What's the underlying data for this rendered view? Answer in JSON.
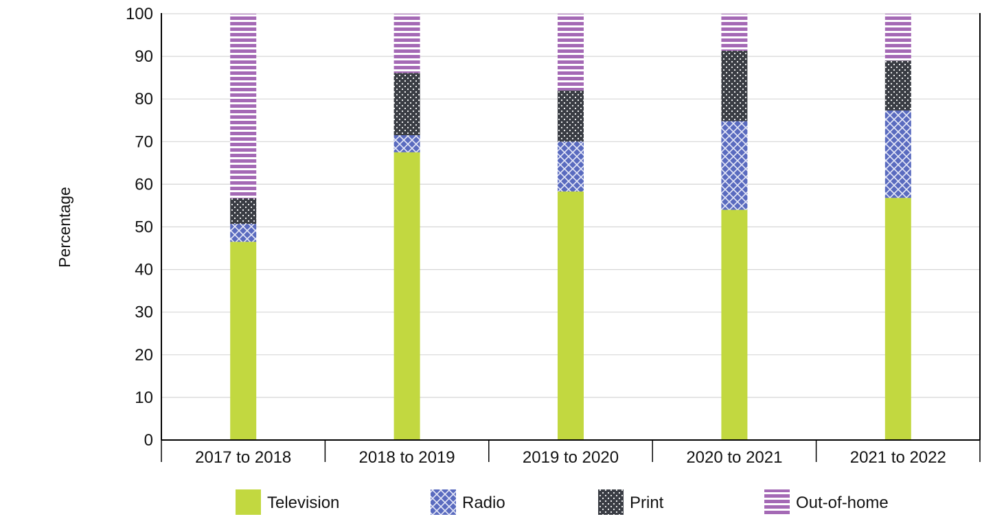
{
  "chart_data": {
    "type": "bar",
    "stacked": true,
    "title": "",
    "xlabel": "",
    "ylabel": "Percentage",
    "ylim": [
      0,
      100
    ],
    "yticks": [
      0,
      10,
      20,
      30,
      40,
      50,
      60,
      70,
      80,
      90,
      100
    ],
    "grid": true,
    "legend_position": "bottom",
    "categories": [
      "2017 to 2018",
      "2018 to 2019",
      "2019 to 2020",
      "2020 to 2021",
      "2021 to 2022"
    ],
    "series": [
      {
        "name": "Television",
        "values": [
          46.5,
          67.5,
          58.3,
          54.0,
          56.8
        ],
        "color": "#c2d840",
        "pattern": "solid"
      },
      {
        "name": "Radio",
        "values": [
          4.2,
          4.0,
          11.7,
          20.8,
          20.5
        ],
        "color": "#5a6bbf",
        "pattern": "crosshatch"
      },
      {
        "name": "Print",
        "values": [
          6.0,
          14.6,
          12.0,
          16.5,
          11.7
        ],
        "color": "#3a3d44",
        "pattern": "dots"
      },
      {
        "name": "Out-of-home",
        "values": [
          43.3,
          13.9,
          18.0,
          8.7,
          11.0
        ],
        "color": "#a469b5",
        "pattern": "stripes"
      }
    ]
  }
}
